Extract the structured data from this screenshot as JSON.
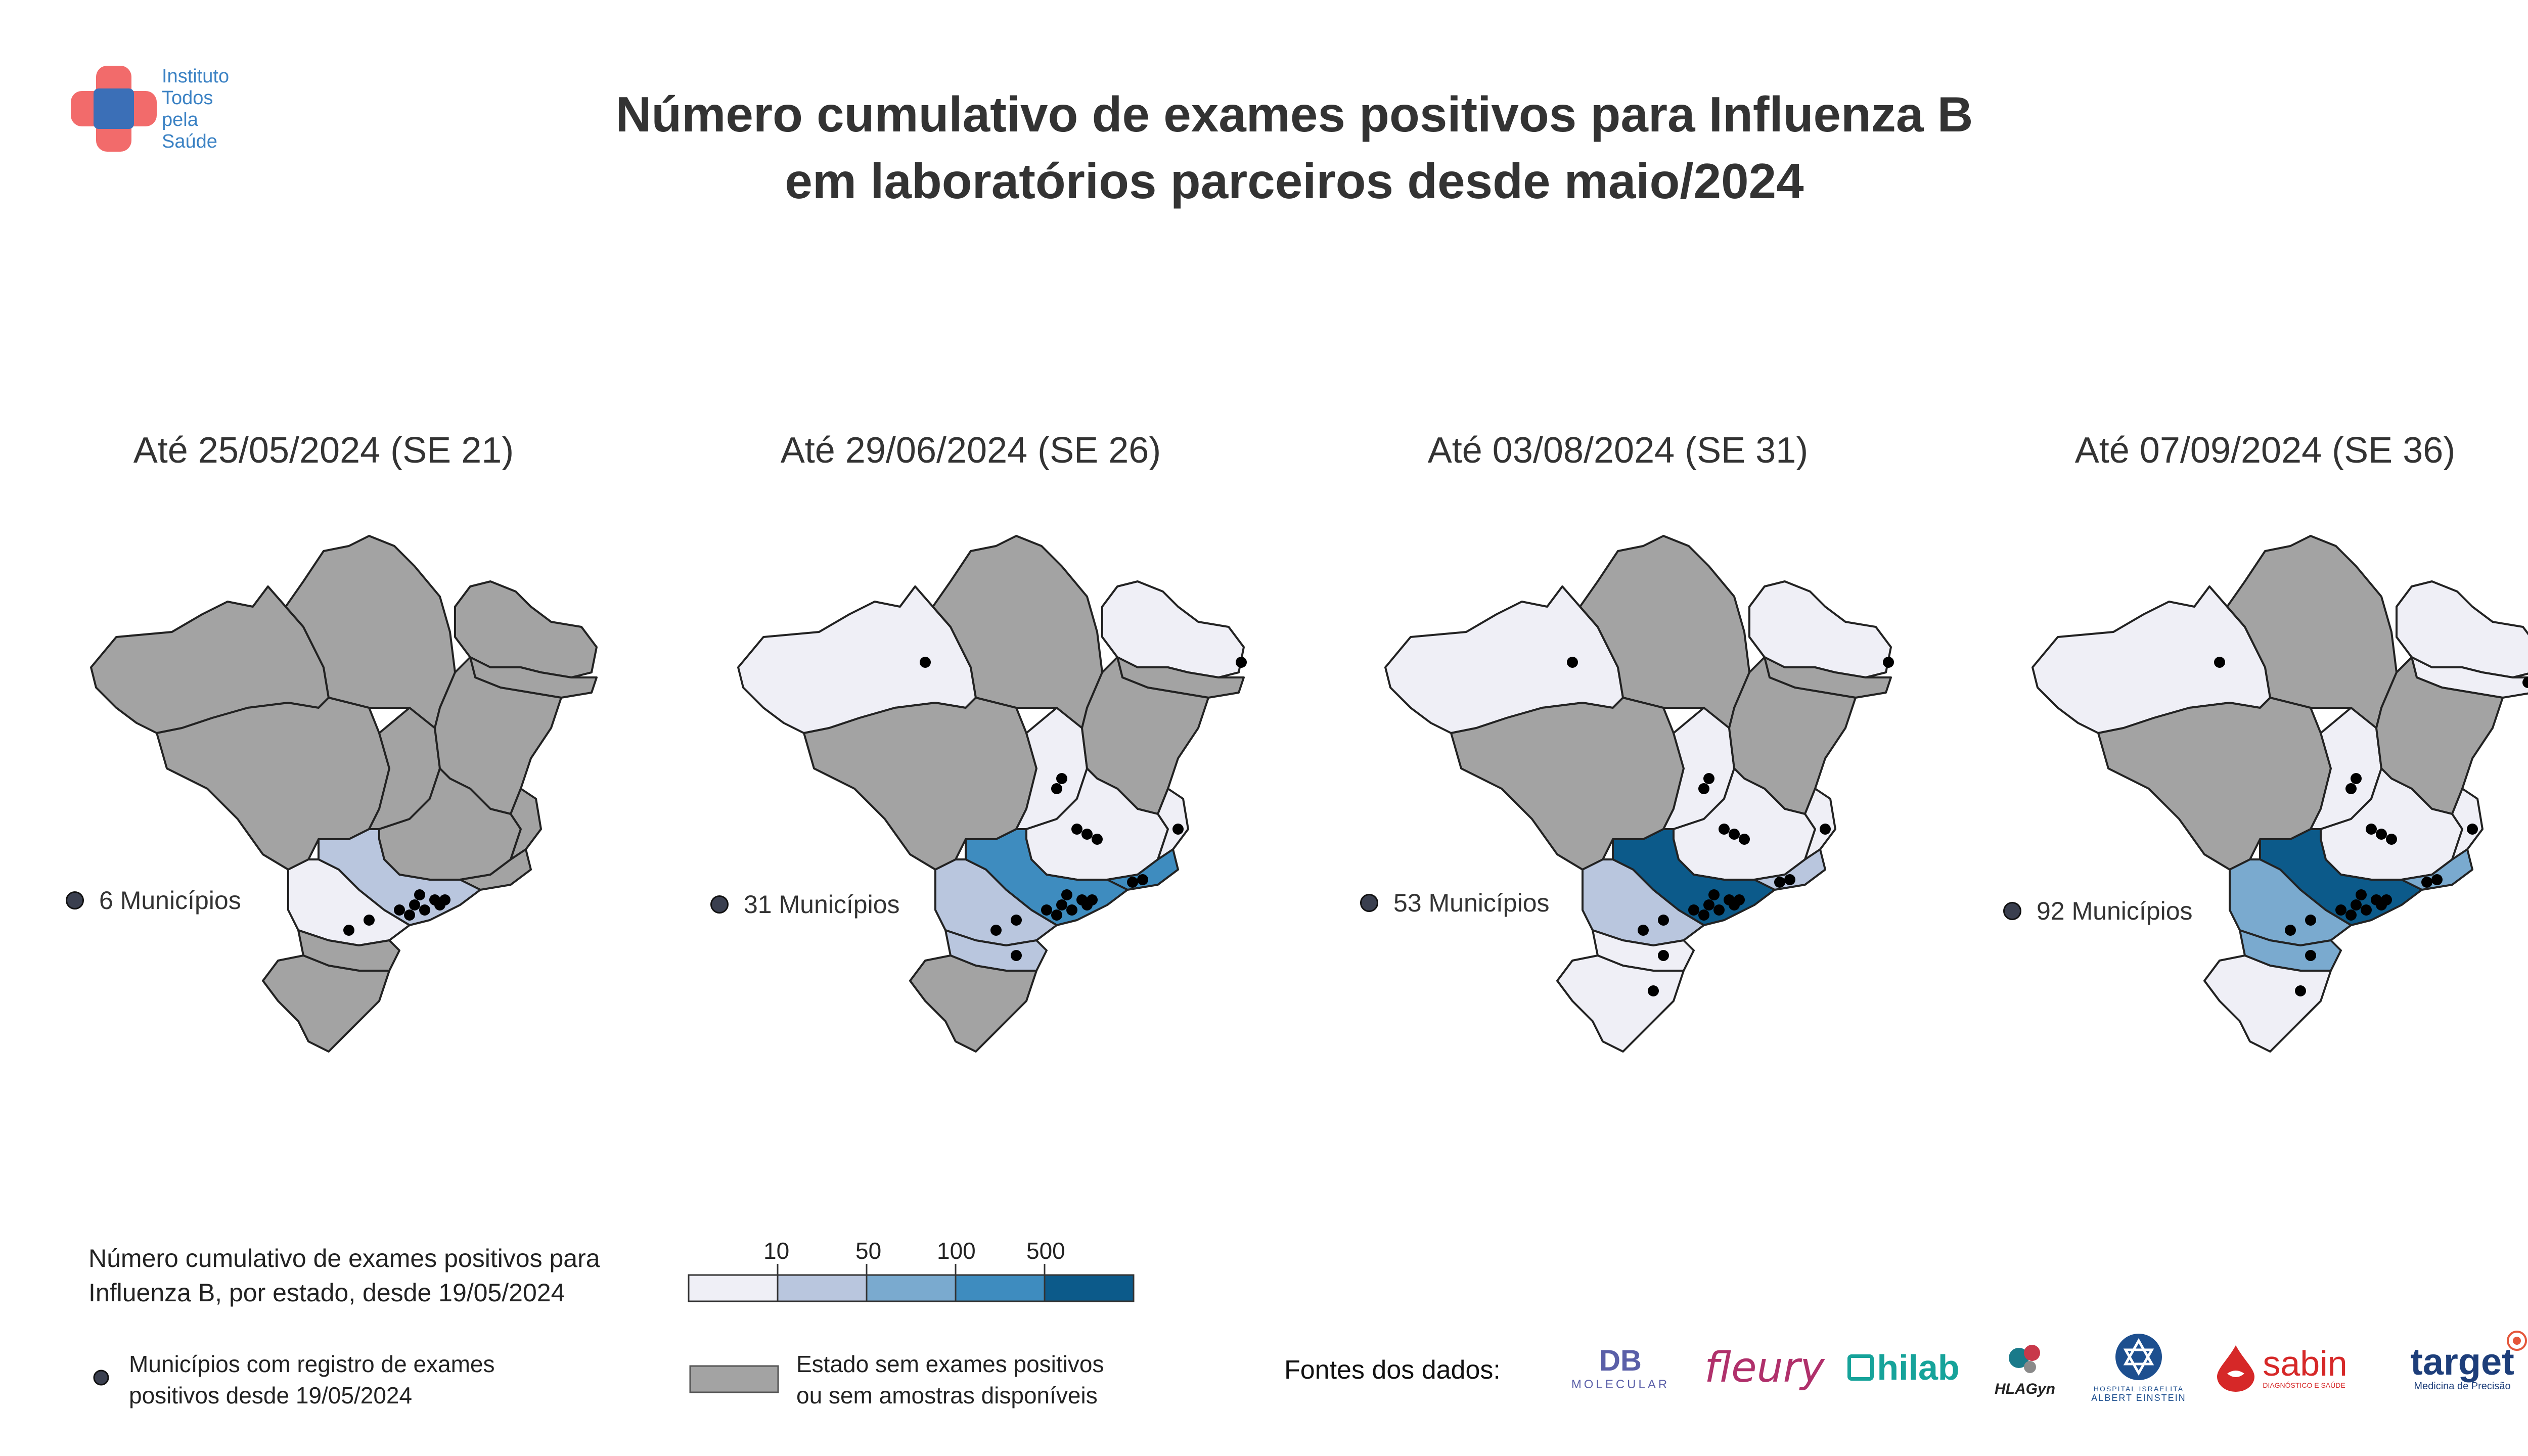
{
  "logo": {
    "lines": [
      "Instituto",
      "Todos",
      "pela",
      "Saúde"
    ],
    "colors": {
      "red": "#f26b6b",
      "blue": "#3b6fb7"
    }
  },
  "title": {
    "line1": "Número cumulativo de exames positivos para Influenza B",
    "line2": "em laboratórios parceiros desde maio/2024"
  },
  "colors": {
    "no_data": "#a3a3a3",
    "bins": [
      "#efeff6",
      "#b9c6de",
      "#7aaacf",
      "#3e8cbf",
      "#0c5a8a"
    ],
    "dot": "#000000"
  },
  "panels": [
    {
      "title": "Até 25/05/2024 (SE 21)",
      "municipios": "6 Municípios",
      "states": {
        "amazonas": 0,
        "north_east": 0,
        "central": 0,
        "mg": 0,
        "sp": 2,
        "pr": 1,
        "sc": 0,
        "rs": 0,
        "rj": 0,
        "es": 0,
        "ba": 0,
        "pe": 0,
        "ne_tip": 0,
        "df_go": 0
      }
    },
    {
      "title": "Até 29/06/2024 (SE 26)",
      "municipios": "31 Municípios",
      "states": {
        "amazonas": 1,
        "north_east": 0,
        "central": 0,
        "mg": 1,
        "sp": 4,
        "pr": 2,
        "sc": 2,
        "rs": 0,
        "rj": 4,
        "es": 1,
        "ba": 0,
        "pe": 0,
        "ne_tip": 1,
        "df_go": 1
      }
    },
    {
      "title": "Até 03/08/2024 (SE 31)",
      "municipios": "53 Municípios",
      "states": {
        "amazonas": 1,
        "north_east": 0,
        "central": 0,
        "mg": 1,
        "sp": 5,
        "pr": 2,
        "sc": 1,
        "rs": 1,
        "rj": 2,
        "es": 1,
        "ba": 0,
        "pe": 0,
        "ne_tip": 1,
        "df_go": 1
      }
    },
    {
      "title": "Até 07/09/2024 (SE 36)",
      "municipios": "92 Municípios",
      "states": {
        "amazonas": 1,
        "north_east": 0,
        "central": 0,
        "mg": 1,
        "sp": 5,
        "pr": 3,
        "sc": 3,
        "rs": 1,
        "rj": 3,
        "es": 1,
        "ba": 0,
        "pe": 1,
        "ne_tip": 1,
        "df_go": 1
      }
    }
  ],
  "legend": {
    "scale_title_line1": "Número cumulativo de exames positivos para",
    "scale_title_line2": "Influenza B, por estado, desde 19/05/2024",
    "ticks": [
      "10",
      "50",
      "100",
      "500"
    ],
    "dot_line1": "Municípios com registro de exames",
    "dot_line2": "positivos desde 19/05/2024",
    "gray_line1": "Estado sem exames positivos",
    "gray_line2": "ou sem amostras disponíveis"
  },
  "sources": {
    "label": "Fontes dos dados:",
    "logos": [
      {
        "name": "DB Molecular",
        "text": "DB",
        "sub": "MOLECULAR",
        "color": "#5a5fa8"
      },
      {
        "name": "fleury",
        "text": "fleury",
        "color": "#b0306b"
      },
      {
        "name": "hilab",
        "text": "hilab",
        "color": "#16a39a"
      },
      {
        "name": "HLAGyn",
        "text": "HLAGyn",
        "color": "#222222"
      },
      {
        "name": "Albert Einstein",
        "text": "ALBERT EINSTEIN",
        "sub": "HOSPITAL ISRAELITA",
        "color": "#1d4f8f"
      },
      {
        "name": "sabin",
        "text": "sabin",
        "sub": "DIAGNÓSTICO E SAÚDE",
        "color": "#d62828"
      },
      {
        "name": "target",
        "text": "target",
        "sub": "Medicina de Precisão",
        "color": "#1d3e7a"
      }
    ]
  }
}
